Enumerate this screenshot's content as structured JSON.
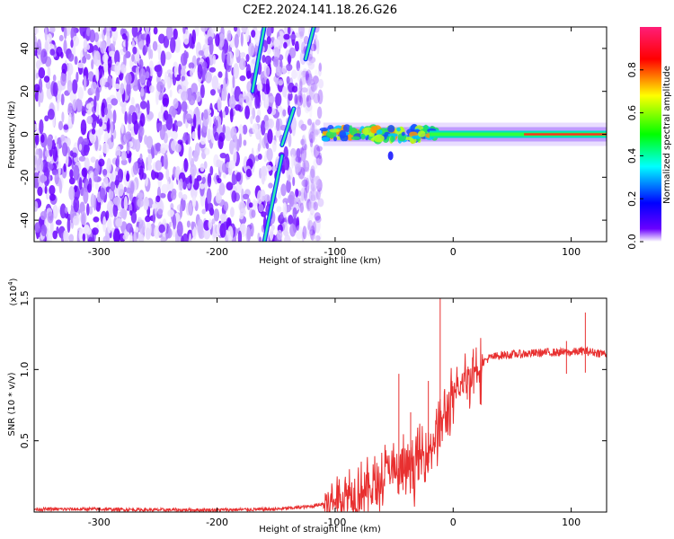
{
  "title": "C2E2.2024.141.18.26.G26",
  "chart_data": [
    {
      "type": "heatmap",
      "xlabel": "Height of straight line (km)",
      "ylabel": "Frequency (Hz)",
      "xlim": [
        -355,
        130
      ],
      "ylim": [
        -50,
        50
      ],
      "x_ticks": [
        -300,
        -200,
        -100,
        0,
        100
      ],
      "y_ticks": [
        -40,
        -20,
        0,
        20,
        40
      ],
      "colorbar": {
        "label": "Normalized spectral amplitude",
        "range": [
          0.0,
          1.0
        ],
        "ticks": [
          "0.0",
          "0.2",
          "0.4",
          "0.6",
          "0.8"
        ],
        "colormap": [
          "#ffffff",
          "#6a00ff",
          "#0000ff",
          "#00ffff",
          "#00ff00",
          "#ffff00",
          "#ff0000",
          "#ff1e78"
        ]
      },
      "noise_region_x": [
        -355,
        -112
      ],
      "features": {
        "streak_lines": [
          {
            "x": [
              -160,
              -145
            ],
            "y": [
              -50,
              -10
            ]
          },
          {
            "x": [
              -145,
              -135
            ],
            "y": [
              -5,
              12
            ]
          },
          {
            "x": [
              -170,
              -160
            ],
            "y": [
              20,
              50
            ]
          },
          {
            "x": [
              -125,
              -118
            ],
            "y": [
              35,
              50
            ]
          }
        ],
        "carrier_band": {
          "x_start": -110,
          "x_end": 130,
          "center_hz": 0,
          "halfwidth_hz": [
            6,
            3
          ]
        }
      }
    },
    {
      "type": "line",
      "xlabel": "Height of straight line (km)",
      "ylabel": "SNR (10 * v/v)",
      "y_multiplier": "(x10^4)",
      "xlim": [
        -355,
        130
      ],
      "ylim": [
        0,
        1.5
      ],
      "x_ticks": [
        -300,
        -200,
        -100,
        0,
        100
      ],
      "y_ticks": [
        "0.5",
        "1.0",
        "1.5"
      ],
      "series": [
        {
          "color": "#e83030",
          "x": [
            -355,
            -300,
            -250,
            -200,
            -150,
            -120,
            -100,
            -90,
            -80,
            -70,
            -60,
            -55,
            -50,
            -45,
            -40,
            -35,
            -30,
            -25,
            -20,
            -15,
            -10,
            -5,
            0,
            10,
            20,
            30,
            40,
            60,
            80,
            100,
            110,
            120,
            130
          ],
          "y": [
            0.02,
            0.02,
            0.015,
            0.015,
            0.02,
            0.04,
            0.08,
            0.12,
            0.15,
            0.17,
            0.2,
            0.33,
            0.25,
            0.28,
            0.3,
            0.32,
            0.35,
            0.4,
            0.45,
            0.55,
            0.62,
            0.7,
            0.78,
            0.92,
            1.02,
            1.08,
            1.1,
            1.11,
            1.12,
            1.12,
            1.13,
            1.12,
            1.11
          ]
        }
      ],
      "spikes": [
        {
          "x": -46,
          "y": 0.97
        },
        {
          "x": -36,
          "y": 0.7
        },
        {
          "x": -21,
          "y": 0.92
        },
        {
          "x": -11,
          "y": 1.5
        },
        {
          "x": 12,
          "y": 1.0
        },
        {
          "x": 112,
          "y": 1.4
        },
        {
          "x": 96,
          "y": 1.2
        }
      ]
    }
  ]
}
